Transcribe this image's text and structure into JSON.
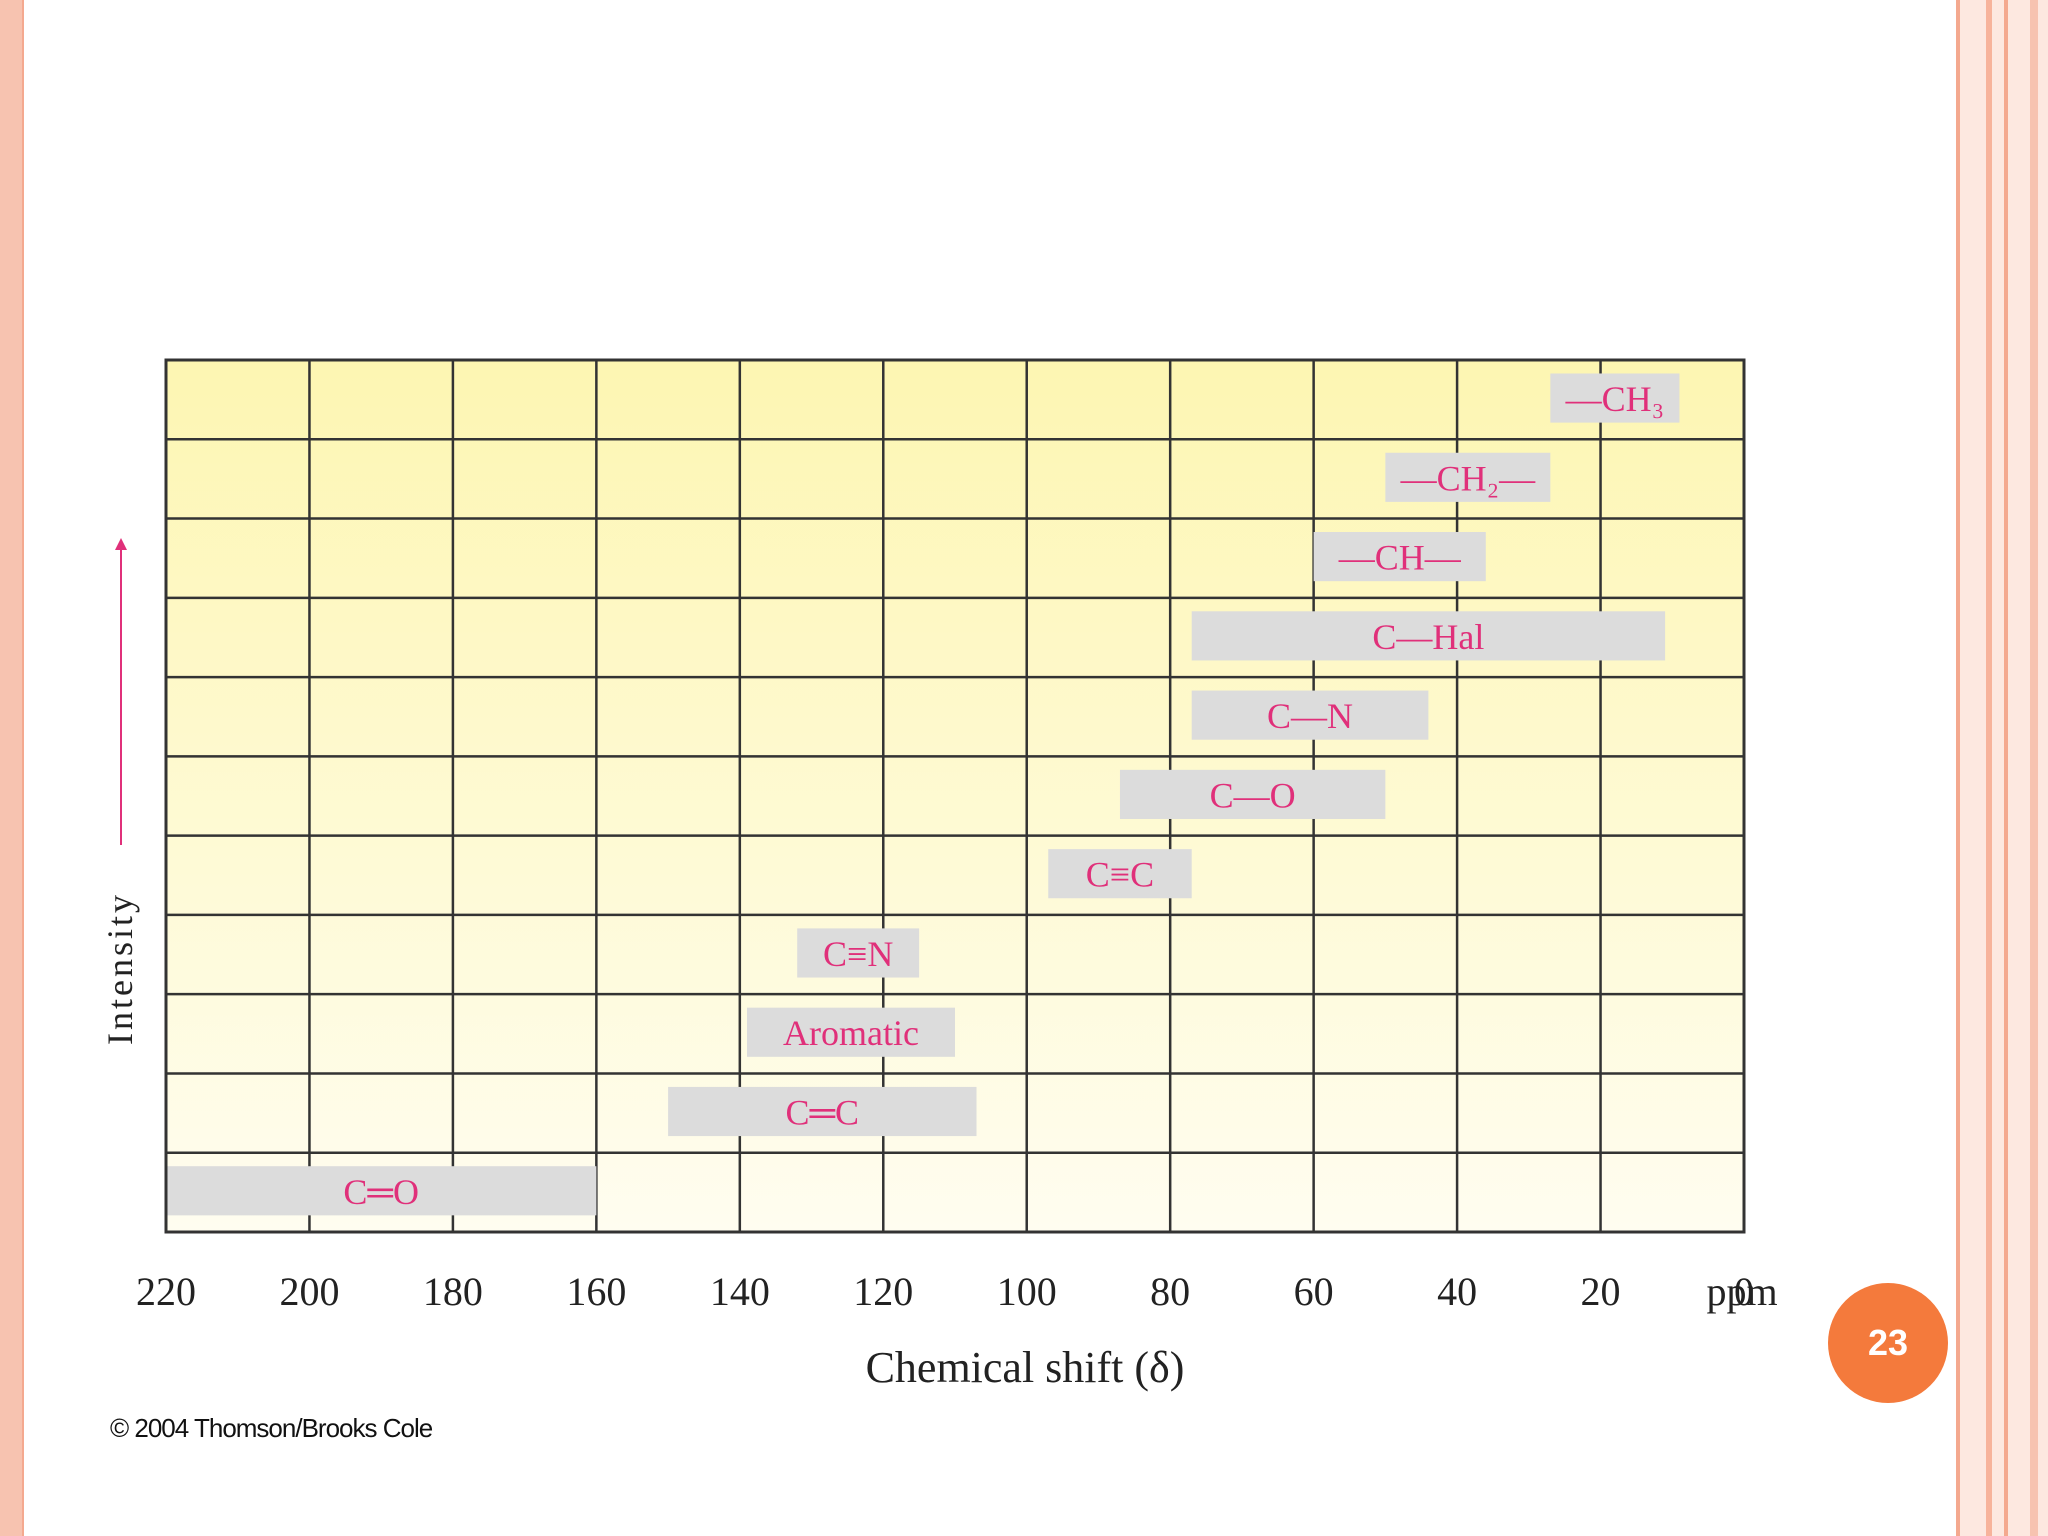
{
  "page_number": "23",
  "copyright": "© 2004 Thomson/Brooks Cole",
  "chart_data": {
    "type": "bar",
    "title": "",
    "xlabel": "Chemical shift (δ)",
    "xlabel_unit": "ppm",
    "ylabel": "Intensity",
    "xlim": [
      220,
      0
    ],
    "x_ticks": [
      "220",
      "200",
      "180",
      "160",
      "140",
      "120",
      "100",
      "80",
      "60",
      "40",
      "20",
      "0"
    ],
    "grid": true,
    "bar_color": "#dcdcdc",
    "label_color": "#e0307a",
    "background_top": "#fdf6b2",
    "background_bottom": "#fffdf0",
    "ranges": [
      {
        "label": "—CH₃",
        "from": 27,
        "to": 9
      },
      {
        "label": "—CH₂—",
        "from": 50,
        "to": 27
      },
      {
        "label": "—CH—",
        "from": 60,
        "to": 36
      },
      {
        "label": "C—Hal",
        "from": 77,
        "to": 11
      },
      {
        "label": "C—N",
        "from": 77,
        "to": 44
      },
      {
        "label": "C—O",
        "from": 87,
        "to": 50
      },
      {
        "label": "C≡C",
        "from": 97,
        "to": 77
      },
      {
        "label": "C≡N",
        "from": 132,
        "to": 115
      },
      {
        "label": "Aromatic",
        "from": 139,
        "to": 110
      },
      {
        "label": "C═C",
        "from": 150,
        "to": 107
      },
      {
        "label": "C═O",
        "from": 220,
        "to": 160
      }
    ]
  }
}
